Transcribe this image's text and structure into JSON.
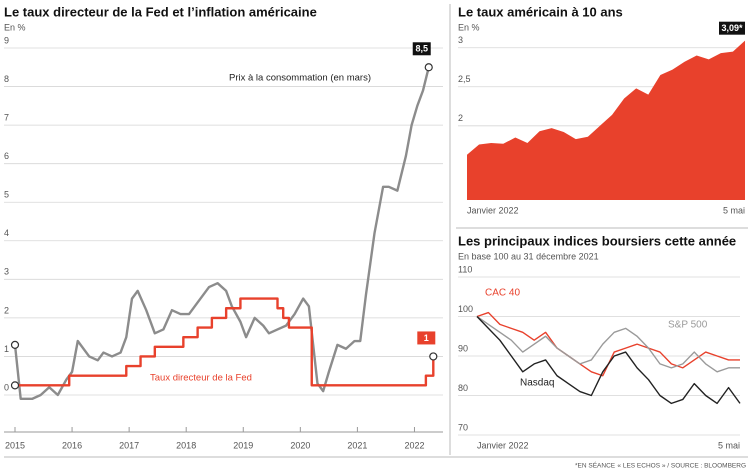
{
  "chart_data": [
    {
      "type": "line",
      "title": "Le taux directeur de la Fed et l’inflation américaine",
      "subtitle": "En %",
      "xlim": [
        2015,
        2022.5
      ],
      "xticks": [
        2015,
        2016,
        2017,
        2018,
        2019,
        2020,
        2021,
        2022
      ],
      "ylim": [
        0,
        9
      ],
      "yticks": [
        0,
        1,
        2,
        3,
        4,
        5,
        6,
        7,
        8,
        9
      ],
      "grid": true,
      "series": [
        {
          "name": "Prix à la consommation (en mars)",
          "color": "#8c8c8c",
          "end_label": "8,5",
          "step": false,
          "x": [
            2015.0,
            2015.1,
            2015.3,
            2015.45,
            2015.6,
            2015.75,
            2015.9,
            2016.0,
            2016.1,
            2016.3,
            2016.45,
            2016.55,
            2016.7,
            2016.85,
            2016.95,
            2017.05,
            2017.15,
            2017.3,
            2017.45,
            2017.6,
            2017.75,
            2017.9,
            2018.05,
            2018.2,
            2018.4,
            2018.55,
            2018.7,
            2018.8,
            2018.95,
            2019.05,
            2019.2,
            2019.35,
            2019.45,
            2019.6,
            2019.75,
            2019.9,
            2020.05,
            2020.15,
            2020.3,
            2020.4,
            2020.5,
            2020.65,
            2020.8,
            2020.95,
            2021.05,
            2021.15,
            2021.3,
            2021.45,
            2021.55,
            2021.7,
            2021.85,
            2021.95,
            2022.05,
            2022.15,
            2022.25
          ],
          "values": [
            1.3,
            -0.1,
            -0.1,
            0.0,
            0.2,
            0.0,
            0.4,
            0.6,
            1.4,
            1.0,
            0.9,
            1.1,
            1.0,
            1.1,
            1.5,
            2.5,
            2.7,
            2.2,
            1.6,
            1.7,
            2.2,
            2.1,
            2.1,
            2.4,
            2.8,
            2.9,
            2.7,
            2.3,
            1.9,
            1.5,
            2.0,
            1.8,
            1.6,
            1.7,
            1.8,
            2.1,
            2.5,
            2.3,
            0.3,
            0.1,
            0.6,
            1.3,
            1.2,
            1.4,
            1.4,
            2.6,
            4.2,
            5.4,
            5.4,
            5.3,
            6.2,
            7.0,
            7.5,
            7.9,
            8.5
          ]
        },
        {
          "name": "Taux directeur de la Fed",
          "color": "#e8412c",
          "end_label": "1",
          "step": true,
          "x": [
            2015.0,
            2015.95,
            2016.95,
            2017.2,
            2017.45,
            2017.95,
            2018.2,
            2018.45,
            2018.7,
            2018.95,
            2019.6,
            2019.7,
            2019.8,
            2020.2,
            2022.2,
            2022.33
          ],
          "values": [
            0.25,
            0.5,
            0.75,
            1.0,
            1.25,
            1.5,
            1.75,
            2.0,
            2.25,
            2.5,
            2.25,
            2.0,
            1.75,
            0.25,
            0.5,
            1.0
          ]
        }
      ]
    },
    {
      "type": "area",
      "title": "Le taux américain à 10 ans",
      "subtitle": "En %",
      "categories": [
        "Janvier 2022",
        null,
        null,
        null,
        null,
        null,
        null,
        null,
        null,
        null,
        null,
        null,
        null,
        null,
        null,
        null,
        null,
        null,
        null,
        null,
        null,
        null,
        null,
        "5 mai"
      ],
      "values": [
        1.63,
        1.76,
        1.78,
        1.77,
        1.85,
        1.78,
        1.93,
        1.97,
        1.92,
        1.83,
        1.86,
        2.0,
        2.14,
        2.35,
        2.48,
        2.4,
        2.65,
        2.72,
        2.82,
        2.9,
        2.85,
        2.93,
        2.95,
        3.09
      ],
      "end_label": "3,09*",
      "color": "#e8412c",
      "ylim": [
        1.05,
        3.15
      ],
      "yticks": [
        2,
        {
          "value": 2.5,
          "label": "2,5"
        },
        3
      ],
      "grid": true
    },
    {
      "type": "line",
      "title": "Les principaux indices boursiers cette année",
      "subtitle": "En base 100 au 31 décembre 2021",
      "categories": [
        "Janvier 2022",
        null,
        null,
        null,
        null,
        null,
        null,
        null,
        null,
        null,
        null,
        null,
        null,
        null,
        null,
        null,
        null,
        null,
        null,
        null,
        null,
        null,
        null,
        "5 mai"
      ],
      "ylim": [
        70,
        110
      ],
      "yticks": [
        70,
        80,
        90,
        100,
        110
      ],
      "grid": true,
      "series": [
        {
          "name": "CAC 40",
          "color": "#e8412c",
          "values": [
            100,
            101,
            98,
            97,
            96,
            94,
            96,
            92,
            90,
            88,
            86,
            85,
            91,
            92,
            93,
            92,
            91,
            88,
            87,
            89,
            91,
            90,
            89,
            89
          ]
        },
        {
          "name": "S&P 500",
          "color": "#9a9a9a",
          "values": [
            100,
            98,
            96,
            94,
            91,
            93,
            95,
            92,
            90,
            88,
            89,
            93,
            96,
            97,
            95,
            92,
            88,
            87,
            88,
            91,
            88,
            86,
            87,
            87
          ]
        },
        {
          "name": "Nasdaq",
          "color": "#222222",
          "values": [
            100,
            97,
            94,
            90,
            86,
            88,
            89,
            85,
            83,
            81,
            80,
            86,
            90,
            91,
            87,
            84,
            80,
            78,
            79,
            83,
            80,
            78,
            82,
            78
          ]
        }
      ]
    }
  ],
  "notes": [
    "*EN SÉANCE",
    "« LES ECHOS » / SOURCE : BLOOMBERG"
  ]
}
